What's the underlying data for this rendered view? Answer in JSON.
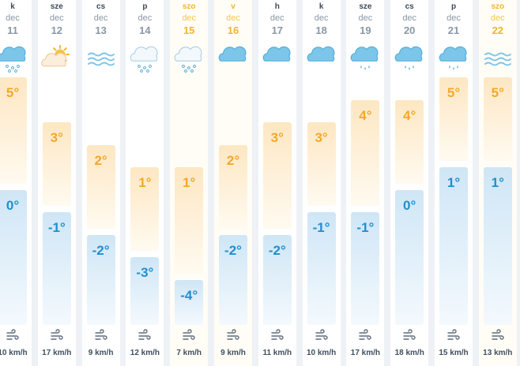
{
  "forecast": [
    {
      "day": "k",
      "month": "dec",
      "date": "11",
      "weekend": false,
      "icon": "snow-light-icon",
      "max": "5°",
      "min": "0°",
      "wind": "10 km/h",
      "max_val": 5,
      "min_val": 0
    },
    {
      "day": "sze",
      "month": "dec",
      "date": "12",
      "weekend": false,
      "icon": "partly-sunny-icon",
      "max": "3°",
      "min": "-1°",
      "wind": "17 km/h",
      "max_val": 3,
      "min_val": -1
    },
    {
      "day": "cs",
      "month": "dec",
      "date": "13",
      "weekend": false,
      "icon": "fog-icon",
      "max": "2°",
      "min": "-2°",
      "wind": "9 km/h",
      "max_val": 2,
      "min_val": -2
    },
    {
      "day": "p",
      "month": "dec",
      "date": "14",
      "weekend": false,
      "icon": "snow-icon",
      "max": "1°",
      "min": "-3°",
      "wind": "12 km/h",
      "max_val": 1,
      "min_val": -3
    },
    {
      "day": "szo",
      "month": "dec",
      "date": "15",
      "weekend": true,
      "icon": "snow-icon",
      "max": "1°",
      "min": "-4°",
      "wind": "7 km/h",
      "max_val": 1,
      "min_val": -4
    },
    {
      "day": "v",
      "month": "dec",
      "date": "16",
      "weekend": true,
      "icon": "cloud-icon",
      "max": "2°",
      "min": "-2°",
      "wind": "9 km/h",
      "max_val": 2,
      "min_val": -2
    },
    {
      "day": "h",
      "month": "dec",
      "date": "17",
      "weekend": false,
      "icon": "cloud-icon",
      "max": "3°",
      "min": "-2°",
      "wind": "11 km/h",
      "max_val": 3,
      "min_val": -2
    },
    {
      "day": "k",
      "month": "dec",
      "date": "18",
      "weekend": false,
      "icon": "cloud-icon",
      "max": "3°",
      "min": "-1°",
      "wind": "10 km/h",
      "max_val": 3,
      "min_val": -1
    },
    {
      "day": "sze",
      "month": "dec",
      "date": "19",
      "weekend": false,
      "icon": "rain-icon",
      "max": "4°",
      "min": "-1°",
      "wind": "17 km/h",
      "max_val": 4,
      "min_val": -1
    },
    {
      "day": "cs",
      "month": "dec",
      "date": "20",
      "weekend": false,
      "icon": "rain-icon",
      "max": "4°",
      "min": "0°",
      "wind": "18 km/h",
      "max_val": 4,
      "min_val": 0
    },
    {
      "day": "p",
      "month": "dec",
      "date": "21",
      "weekend": false,
      "icon": "rain-icon",
      "max": "5°",
      "min": "1°",
      "wind": "15 km/h",
      "max_val": 5,
      "min_val": 1
    },
    {
      "day": "szo",
      "month": "dec",
      "date": "22",
      "weekend": true,
      "icon": "fog-icon",
      "max": "5°",
      "min": "1°",
      "wind": "13 km/h",
      "max_val": 5,
      "min_val": 1
    }
  ],
  "colors": {
    "max": "#f4a82a",
    "min": "#1f8fd0",
    "weekend": "#f2b431",
    "cloud": "#7cc6ea"
  }
}
